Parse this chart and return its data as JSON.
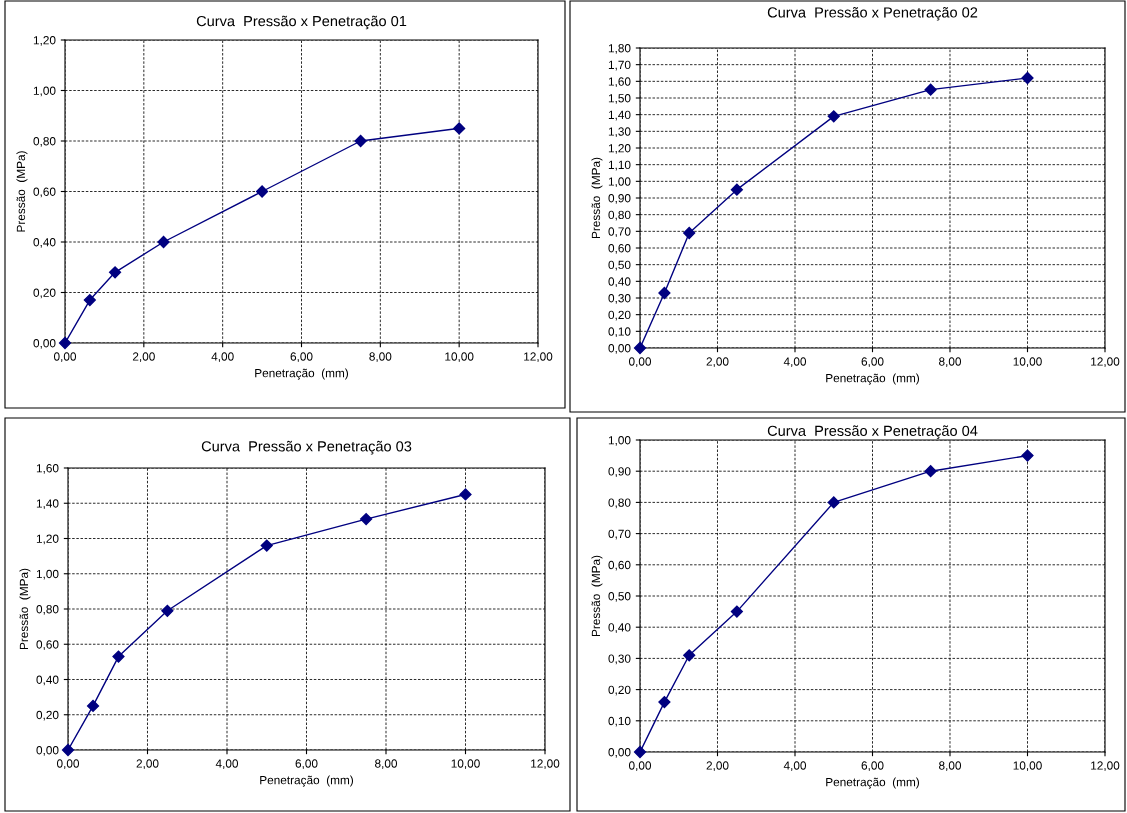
{
  "chart_data": [
    {
      "type": "line",
      "title": "Curva  Pressão x Penetração 01",
      "xlabel": "Penetração  (mm)",
      "ylabel": "Pressão  (MPa)",
      "x": [
        0,
        0.63,
        1.27,
        2.5,
        5.0,
        7.5,
        10.0
      ],
      "series": [
        {
          "color": "#000080",
          "values": [
            0,
            0.17,
            0.28,
            0.4,
            0.6,
            0.8,
            0.85
          ]
        }
      ],
      "marker": "diamond",
      "line_style": "solid",
      "grid": true,
      "xlim": [
        0,
        12
      ],
      "xticks": [
        {
          "value": 0,
          "label": "0,00"
        },
        {
          "value": 2,
          "label": "2,00"
        },
        {
          "value": 4,
          "label": "4,00"
        },
        {
          "value": 6,
          "label": "6,00"
        },
        {
          "value": 8,
          "label": "8,00"
        },
        {
          "value": 10,
          "label": "10,00"
        },
        {
          "value": 12,
          "label": "12,00"
        }
      ],
      "ylim": [
        0,
        1.2
      ],
      "yticks": [
        {
          "value": 0,
          "label": "0,00"
        },
        {
          "value": 0.2,
          "label": "0,20"
        },
        {
          "value": 0.4,
          "label": "0,40"
        },
        {
          "value": 0.6,
          "label": "0,60"
        },
        {
          "value": 0.8,
          "label": "0,80"
        },
        {
          "value": 1.0,
          "label": "1,00"
        },
        {
          "value": 1.2,
          "label": "1,20"
        }
      ]
    },
    {
      "type": "line",
      "title": "Curva  Pressão x Penetração 02",
      "xlabel": "Penetração  (mm)",
      "ylabel": "Pressão  (MPa)",
      "x": [
        0,
        0.63,
        1.27,
        2.5,
        5.0,
        7.5,
        10.0
      ],
      "series": [
        {
          "color": "#000080",
          "values": [
            0,
            0.33,
            0.69,
            0.95,
            1.39,
            1.55,
            1.62
          ]
        }
      ],
      "marker": "diamond",
      "line_style": "solid",
      "grid": true,
      "xlim": [
        0,
        12
      ],
      "xticks": [
        {
          "value": 0,
          "label": "0,00"
        },
        {
          "value": 2,
          "label": "2,00"
        },
        {
          "value": 4,
          "label": "4,00"
        },
        {
          "value": 6,
          "label": "6,00"
        },
        {
          "value": 8,
          "label": "8,00"
        },
        {
          "value": 10,
          "label": "10,00"
        },
        {
          "value": 12,
          "label": "12,00"
        }
      ],
      "ylim": [
        0,
        1.8
      ],
      "yticks": [
        {
          "value": 0,
          "label": "0,00"
        },
        {
          "value": 0.1,
          "label": "0,10"
        },
        {
          "value": 0.2,
          "label": "0,20"
        },
        {
          "value": 0.3,
          "label": "0,30"
        },
        {
          "value": 0.4,
          "label": "0,40"
        },
        {
          "value": 0.5,
          "label": "0,50"
        },
        {
          "value": 0.6,
          "label": "0,60"
        },
        {
          "value": 0.7,
          "label": "0,70"
        },
        {
          "value": 0.8,
          "label": "0,80"
        },
        {
          "value": 0.9,
          "label": "0,90"
        },
        {
          "value": 1.0,
          "label": "1,00"
        },
        {
          "value": 1.1,
          "label": "1,10"
        },
        {
          "value": 1.2,
          "label": "1,20"
        },
        {
          "value": 1.3,
          "label": "1,30"
        },
        {
          "value": 1.4,
          "label": "1,40"
        },
        {
          "value": 1.5,
          "label": "1,50"
        },
        {
          "value": 1.6,
          "label": "1,60"
        },
        {
          "value": 1.7,
          "label": "1,70"
        },
        {
          "value": 1.8,
          "label": "1,80"
        }
      ]
    },
    {
      "type": "line",
      "title": "Curva  Pressão x Penetração 03",
      "xlabel": "Penetração  (mm)",
      "ylabel": "Pressão  (MPa)",
      "x": [
        0,
        0.63,
        1.27,
        2.5,
        5.0,
        7.5,
        10.0
      ],
      "series": [
        {
          "color": "#000080",
          "values": [
            0,
            0.25,
            0.53,
            0.79,
            1.16,
            1.31,
            1.45
          ]
        }
      ],
      "marker": "diamond",
      "line_style": "solid",
      "grid": true,
      "xlim": [
        0,
        12
      ],
      "xticks": [
        {
          "value": 0,
          "label": "0,00"
        },
        {
          "value": 2,
          "label": "2,00"
        },
        {
          "value": 4,
          "label": "4,00"
        },
        {
          "value": 6,
          "label": "6,00"
        },
        {
          "value": 8,
          "label": "8,00"
        },
        {
          "value": 10,
          "label": "10,00"
        },
        {
          "value": 12,
          "label": "12,00"
        }
      ],
      "ylim": [
        0,
        1.6
      ],
      "yticks": [
        {
          "value": 0,
          "label": "0,00"
        },
        {
          "value": 0.2,
          "label": "0,20"
        },
        {
          "value": 0.4,
          "label": "0,40"
        },
        {
          "value": 0.6,
          "label": "0,60"
        },
        {
          "value": 0.8,
          "label": "0,80"
        },
        {
          "value": 1.0,
          "label": "1,00"
        },
        {
          "value": 1.2,
          "label": "1,20"
        },
        {
          "value": 1.4,
          "label": "1,40"
        },
        {
          "value": 1.6,
          "label": "1,60"
        }
      ]
    },
    {
      "type": "line",
      "title": "Curva  Pressão x Penetração 04",
      "xlabel": "Penetração  (mm)",
      "ylabel": "Pressão  (MPa)",
      "x": [
        0,
        0.63,
        1.27,
        2.5,
        5.0,
        7.5,
        10.0
      ],
      "series": [
        {
          "color": "#000080",
          "values": [
            0,
            0.16,
            0.31,
            0.45,
            0.8,
            0.9,
            0.95
          ]
        }
      ],
      "marker": "diamond",
      "line_style": "solid",
      "grid": true,
      "xlim": [
        0,
        12
      ],
      "xticks": [
        {
          "value": 0,
          "label": "0,00"
        },
        {
          "value": 2,
          "label": "2,00"
        },
        {
          "value": 4,
          "label": "4,00"
        },
        {
          "value": 6,
          "label": "6,00"
        },
        {
          "value": 8,
          "label": "8,00"
        },
        {
          "value": 10,
          "label": "10,00"
        },
        {
          "value": 12,
          "label": "12,00"
        }
      ],
      "ylim": [
        0,
        1.0
      ],
      "yticks": [
        {
          "value": 0,
          "label": "0,00"
        },
        {
          "value": 0.1,
          "label": "0,10"
        },
        {
          "value": 0.2,
          "label": "0,20"
        },
        {
          "value": 0.3,
          "label": "0,30"
        },
        {
          "value": 0.4,
          "label": "0,40"
        },
        {
          "value": 0.5,
          "label": "0,50"
        },
        {
          "value": 0.6,
          "label": "0,60"
        },
        {
          "value": 0.7,
          "label": "0,70"
        },
        {
          "value": 0.8,
          "label": "0,80"
        },
        {
          "value": 0.9,
          "label": "0,90"
        },
        {
          "value": 1.0,
          "label": "1,00"
        }
      ]
    }
  ]
}
